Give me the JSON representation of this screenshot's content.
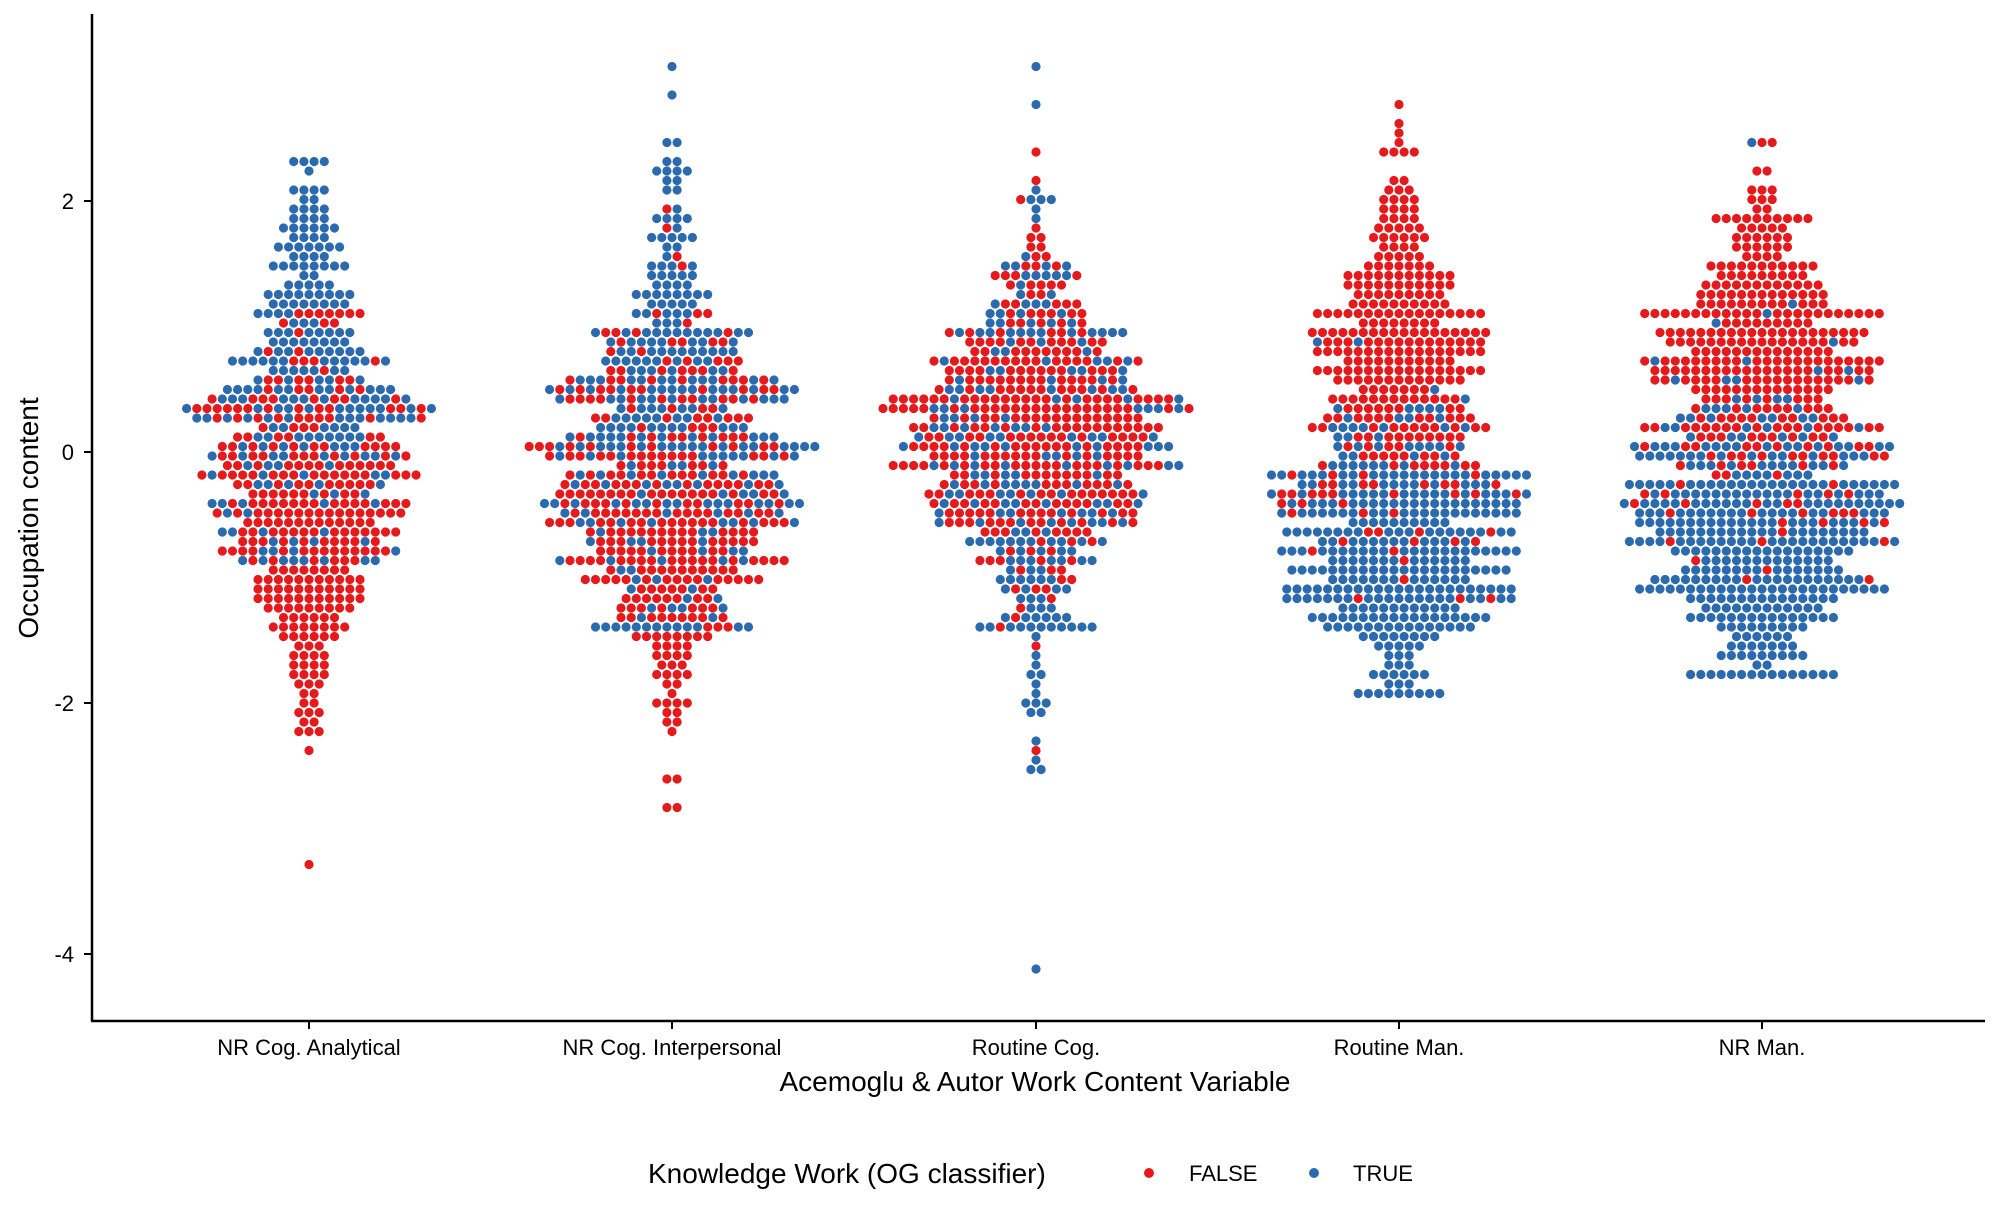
{
  "chart_data": {
    "type": "scatter",
    "subtype": "beeswarm",
    "title": "",
    "xlabel": "Acemoglu & Autor Work Content Variable",
    "ylabel": "Occupation content",
    "ylim": [
      -4.5,
      3.5
    ],
    "y_ticks": [
      2,
      0,
      -2,
      -4
    ],
    "y_tick_labels": [
      "2",
      "0",
      "-2",
      "-4"
    ],
    "categories": [
      "NR Cog. Analytical",
      "NR Cog. Interpersonal",
      "Routine Cog.",
      "Routine Man.",
      "NR Man."
    ],
    "legend": {
      "title": "Knowledge Work (OG classifier)",
      "position": "bottom",
      "entries": [
        {
          "label": "FALSE",
          "color": "#E41A1C"
        },
        {
          "label": "TRUE",
          "color": "#2C6AAE"
        }
      ]
    },
    "series": [
      {
        "name": "FALSE",
        "color": "#E41A1C",
        "distributions": [
          {
            "category": "NR Cog. Analytical",
            "n": 330,
            "mean": -0.55,
            "sd": 0.78,
            "min": -3.3,
            "max": 1.1
          },
          {
            "category": "NR Cog. Interpersonal",
            "n": 360,
            "mean": -0.4,
            "sd": 0.72,
            "min": -2.85,
            "max": 1.9
          },
          {
            "category": "Routine Cog.",
            "n": 380,
            "mean": 0.25,
            "sd": 0.62,
            "min": -2.35,
            "max": 2.4
          },
          {
            "category": "Routine Man.",
            "n": 330,
            "mean": 0.75,
            "sd": 0.7,
            "min": -1.2,
            "max": 2.8
          },
          {
            "category": "NR Man.",
            "n": 370,
            "mean": 0.75,
            "sd": 0.65,
            "min": -1.0,
            "max": 2.5
          }
        ]
      },
      {
        "name": "TRUE",
        "color": "#2C6AAE",
        "distributions": [
          {
            "category": "NR Cog. Analytical",
            "n": 250,
            "mean": 0.6,
            "sd": 0.75,
            "min": -0.9,
            "max": 2.35
          },
          {
            "category": "NR Cog. Interpersonal",
            "n": 310,
            "mean": 0.25,
            "sd": 0.9,
            "min": -1.4,
            "max": 3.05
          },
          {
            "category": "Routine Cog.",
            "n": 250,
            "mean": -0.1,
            "sd": 1.0,
            "min": -4.15,
            "max": 3.05
          },
          {
            "category": "Routine Man.",
            "n": 370,
            "mean": -0.75,
            "sd": 0.55,
            "min": -1.9,
            "max": 0.9
          },
          {
            "category": "NR Man.",
            "n": 420,
            "mean": -0.65,
            "sd": 0.6,
            "min": -1.75,
            "max": 2.5
          }
        ]
      }
    ]
  }
}
